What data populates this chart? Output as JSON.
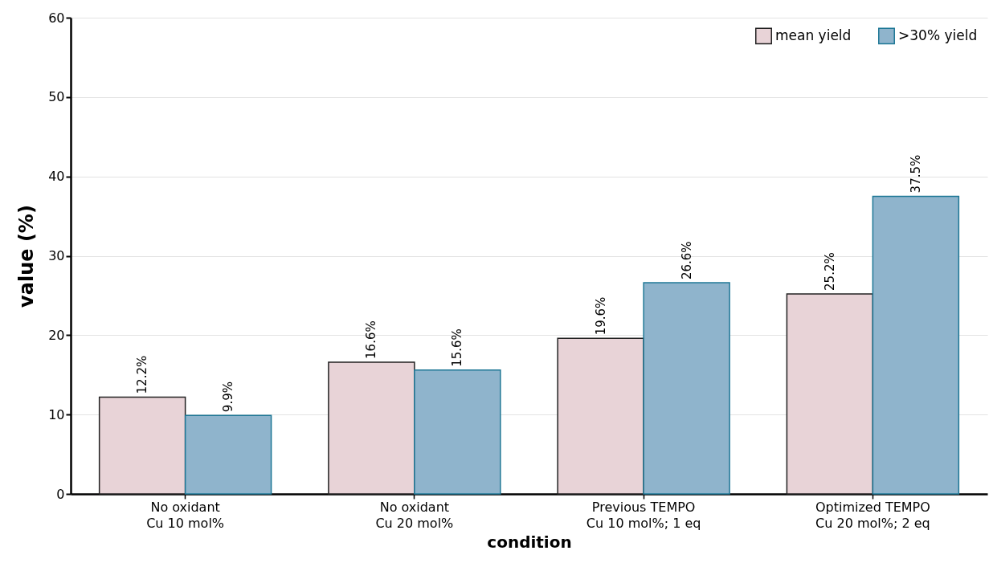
{
  "chart_data": {
    "type": "bar",
    "xlabel": "condition",
    "ylabel": "value (%)",
    "categories": [
      "No oxidant\nCu 10 mol%",
      "No oxidant\nCu 20 mol%",
      "Previous TEMPO\nCu 10 mol%; 1 eq",
      "Optimized TEMPO\nCu 20 mol%; 2 eq"
    ],
    "series": [
      {
        "name": "mean yield",
        "color": "#e8d3d7",
        "values": [
          12.2,
          16.6,
          19.6,
          25.2
        ],
        "value_labels": [
          "12.2%",
          "16.6%",
          "19.6%",
          "25.2%"
        ]
      },
      {
        "name": ">30% yield",
        "color": "#8fb4cc",
        "values": [
          9.9,
          15.6,
          26.6,
          37.5
        ],
        "value_labels": [
          "9.9%",
          "15.6%",
          "26.6%",
          "37.5%"
        ]
      }
    ],
    "ylim": [
      0,
      60
    ],
    "yticks": [
      0,
      10,
      20,
      30,
      40,
      50,
      60
    ],
    "grid": "y",
    "legend": "top right"
  }
}
